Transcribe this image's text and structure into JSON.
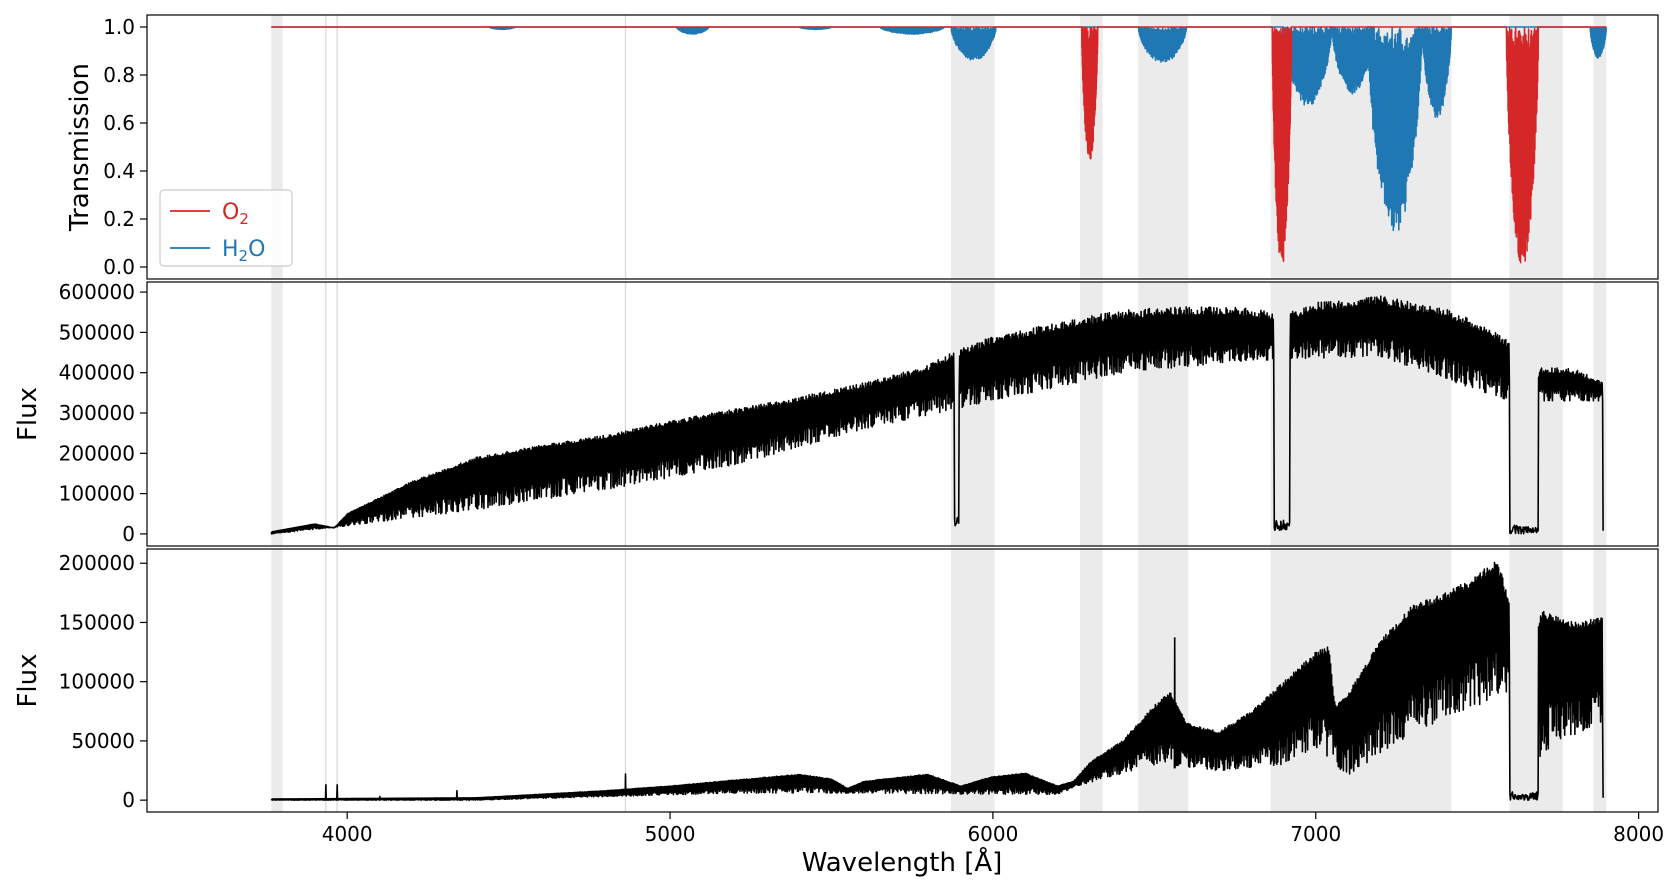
{
  "figure": {
    "x_axis_label": "Wavelength [Å]",
    "x_tick_labels": [
      "4000",
      "5000",
      "6000",
      "7000",
      "8000"
    ]
  },
  "colors": {
    "o2": "#d62728",
    "h2o": "#1f77b4",
    "flux": "#000000",
    "shade": "#ebebeb",
    "vline": "#d9d9d9"
  },
  "chart_data": [
    {
      "type": "line",
      "panel": "transmission",
      "ylabel": "Transmission",
      "xlim": [
        3380,
        8060
      ],
      "ylim": [
        -0.05,
        1.05
      ],
      "yticks": [
        0.0,
        0.2,
        0.4,
        0.6,
        0.8,
        1.0
      ],
      "ytick_labels": [
        "0.0",
        "0.2",
        "0.4",
        "0.6",
        "0.8",
        "1.0"
      ],
      "legend": {
        "placement": "lower-left",
        "entries": [
          {
            "series": "o2",
            "label": "O",
            "sub": "2",
            "after": ""
          },
          {
            "series": "h2o",
            "label": "H",
            "sub": "2",
            "after": "O"
          }
        ]
      },
      "shaded_bands": [
        [
          3765,
          3800
        ],
        [
          5870,
          6005
        ],
        [
          6270,
          6340
        ],
        [
          6450,
          6605
        ],
        [
          6860,
          7420
        ],
        [
          7600,
          7765
        ],
        [
          7860,
          7900
        ]
      ],
      "vertical_lines": [
        3934,
        3969,
        4862
      ],
      "series": [
        {
          "key": "h2o",
          "x_range": [
            3765,
            7900
          ],
          "continuum": 1.0,
          "absorption_bands": [
            {
              "x": [
                4440,
                4520
              ],
              "min": 0.99
            },
            {
              "x": [
                5020,
                5120
              ],
              "min": 0.97
            },
            {
              "x": [
                5400,
                5500
              ],
              "min": 0.99
            },
            {
              "x": [
                5650,
                5850
              ],
              "min": 0.97
            },
            {
              "x": [
                5870,
                6010
              ],
              "min": 0.86
            },
            {
              "x": [
                6450,
                6600
              ],
              "min": 0.85
            },
            {
              "x": [
                6900,
                7050
              ],
              "min": 0.67
            },
            {
              "x": [
                7050,
                7180
              ],
              "min": 0.72
            },
            {
              "x": [
                7160,
                7330
              ],
              "min": 0.14
            },
            {
              "x": [
                7330,
                7420
              ],
              "min": 0.62
            },
            {
              "x": [
                7850,
                7900
              ],
              "min": 0.87
            }
          ]
        },
        {
          "key": "o2",
          "x_range": [
            3765,
            7900
          ],
          "continuum": 1.0,
          "absorption_bands": [
            {
              "x": [
                6275,
                6325
              ],
              "min": 0.44
            },
            {
              "x": [
                6865,
                6925
              ],
              "min": 0.0
            },
            {
              "x": [
                7590,
                7690
              ],
              "min": 0.0
            }
          ]
        }
      ]
    },
    {
      "type": "line",
      "panel": "observed_flux",
      "ylabel": "Flux",
      "xlim": [
        3380,
        8060
      ],
      "ylim": [
        -30000,
        625000
      ],
      "yticks": [
        0,
        100000,
        200000,
        300000,
        400000,
        500000,
        600000
      ],
      "ytick_labels": [
        "0",
        "100000",
        "200000",
        "300000",
        "400000",
        "500000",
        "600000"
      ],
      "shaded_bands": [
        [
          3765,
          3800
        ],
        [
          5870,
          6005
        ],
        [
          6270,
          6340
        ],
        [
          6450,
          6605
        ],
        [
          6860,
          7420
        ],
        [
          7600,
          7765
        ],
        [
          7860,
          7900
        ]
      ],
      "vertical_lines": [
        3934,
        3969,
        4862
      ],
      "series": [
        {
          "key": "flux",
          "continuum_upper": {
            "x": [
              3765,
              3900,
              3960,
              4000,
              4200,
              4400,
              4600,
              4800,
              5000,
              5200,
              5400,
              5600,
              5800,
              5900,
              6000,
              6200,
              6400,
              6600,
              6800,
              6900,
              7000,
              7200,
              7400,
              7500,
              7600,
              7650,
              7700,
              7800,
              7890
            ],
            "y": [
              5000,
              25000,
              15000,
              50000,
              130000,
              190000,
              220000,
              245000,
              280000,
              310000,
              340000,
              375000,
              420000,
              460000,
              490000,
              525000,
              555000,
              565000,
              560000,
              545000,
              575000,
              590000,
              560000,
              525000,
              480000,
              360000,
              415000,
              410000,
              380000
            ]
          },
          "continuum_lower": {
            "x": [
              3765,
              4000,
              4400,
              4800,
              5200,
              5600,
              6000,
              6400,
              6800,
              7200,
              7600,
              7890
            ],
            "y": [
              0,
              20000,
              60000,
              110000,
              170000,
              260000,
              330000,
              400000,
              430000,
              440000,
              330000,
              330000
            ]
          },
          "deep_features": [
            {
              "x": [
                5880,
                5895
              ],
              "min": 20000
            },
            {
              "x": [
                6870,
                6920
              ],
              "min": 8000
            },
            {
              "x": [
                7600,
                7690
              ],
              "min": 0
            },
            {
              "x": [
                7890,
                7905
              ],
              "min": 0
            }
          ]
        }
      ]
    },
    {
      "type": "line",
      "panel": "source_flux",
      "ylabel": "Flux",
      "xlim": [
        3380,
        8060
      ],
      "ylim": [
        -10000,
        212000
      ],
      "yticks": [
        0,
        50000,
        100000,
        150000,
        200000
      ],
      "ytick_labels": [
        "0",
        "50000",
        "100000",
        "150000",
        "200000"
      ],
      "shaded_bands": [
        [
          3765,
          3800
        ],
        [
          5870,
          6005
        ],
        [
          6270,
          6340
        ],
        [
          6450,
          6605
        ],
        [
          6860,
          7420
        ],
        [
          7600,
          7765
        ],
        [
          7860,
          7900
        ]
      ],
      "vertical_lines": [
        3934,
        3969,
        4862
      ],
      "series": [
        {
          "key": "flux",
          "continuum_upper": {
            "x": [
              3765,
              4400,
              4800,
              5000,
              5200,
              5400,
              5500,
              5550,
              5600,
              5800,
              5900,
              6000,
              6100,
              6200,
              6250,
              6300,
              6400,
              6500,
              6550,
              6600,
              6700,
              6800,
              6900,
              7000,
              7040,
              7060,
              7100,
              7200,
              7300,
              7400,
              7500,
              7560,
              7600,
              7650,
              7700,
              7800,
              7890
            ],
            "y": [
              1000,
              2000,
              8000,
              12000,
              17000,
              22000,
              18000,
              10000,
              16000,
              22000,
              12000,
              20000,
              23000,
              12000,
              16000,
              32000,
              50000,
              80000,
              92000,
              65000,
              58000,
              75000,
              100000,
              125000,
              130000,
              80000,
              90000,
              135000,
              165000,
              175000,
              190000,
              205000,
              170000,
              100000,
              160000,
              150000,
              155000
            ]
          },
          "continuum_lower": {
            "x": [
              3765,
              4400,
              4800,
              5200,
              5600,
              6000,
              6200,
              6300,
              6500,
              6700,
              6900,
              7000,
              7100,
              7200,
              7400,
              7600,
              7650,
              7700,
              7800,
              7890
            ],
            "y": [
              0,
              0,
              3000,
              6000,
              6000,
              5000,
              5000,
              15000,
              30000,
              25000,
              30000,
              45000,
              20000,
              40000,
              70000,
              90000,
              5000,
              40000,
              55000,
              65000
            ]
          },
          "emission_spikes": [
            {
              "x": 3934,
              "y": 13000
            },
            {
              "x": 3969,
              "y": 13000
            },
            {
              "x": 4101,
              "y": 3000
            },
            {
              "x": 4340,
              "y": 8000
            },
            {
              "x": 4862,
              "y": 22000
            },
            {
              "x": 6563,
              "y": 137000
            }
          ],
          "deep_features": [
            {
              "x": [
                7600,
                7690
              ],
              "min": 0
            },
            {
              "x": [
                7890,
                7905
              ],
              "min": 0
            }
          ]
        }
      ]
    }
  ]
}
